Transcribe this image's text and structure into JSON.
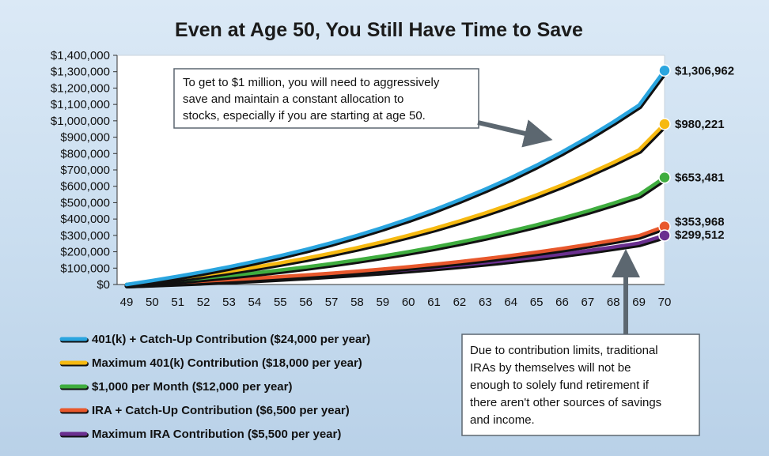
{
  "chart_data": {
    "type": "line",
    "title": "Even at Age 50, You Still Have Time to Save",
    "xlabel": "",
    "ylabel": "",
    "x": [
      49,
      50,
      51,
      52,
      53,
      54,
      55,
      56,
      57,
      58,
      59,
      60,
      61,
      62,
      63,
      64,
      65,
      66,
      67,
      68,
      69,
      70
    ],
    "x_tick_labels": [
      "49",
      "50",
      "51",
      "52",
      "53",
      "54",
      "55",
      "56",
      "57",
      "58",
      "59",
      "60",
      "61",
      "62",
      "63",
      "64",
      "65",
      "66",
      "67",
      "68",
      "69",
      "70"
    ],
    "ylim": [
      0,
      1400000
    ],
    "y_tick_labels": [
      "$0",
      "$100,000",
      "$200,000",
      "$300,000",
      "$400,000",
      "$500,000",
      "$600,000",
      "$700,000",
      "$800,000",
      "$900,000",
      "$1,000,000",
      "$1,100,000",
      "$1,200,000",
      "$1,300,000",
      "$1,400,000"
    ],
    "grid": false,
    "legend_position": "bottom-left",
    "series": [
      {
        "name": "401(k) + Catch-Up Contribution ($24,000 per year)",
        "color": "#2aa5df",
        "values": [
          0,
          24000,
          50000,
          78000,
          108000,
          141000,
          176000,
          214000,
          255000,
          300000,
          348000,
          400000,
          456000,
          517000,
          582000,
          652000,
          728000,
          810000,
          898000,
          993000,
          1095000,
          1306962
        ],
        "end_label": "$1,306,962"
      },
      {
        "name": "Maximum 401(k) Contribution ($18,000 per year)",
        "color": "#f6b911",
        "values": [
          0,
          18000,
          37500,
          58500,
          81000,
          105500,
          132000,
          160500,
          191500,
          225000,
          261000,
          300000,
          342000,
          388000,
          437000,
          490000,
          547000,
          608000,
          674000,
          745000,
          822000,
          980221
        ],
        "end_label": "$980,221"
      },
      {
        "name": "$1,000 per Month ($12,000 per year)",
        "color": "#3fad3f",
        "values": [
          0,
          12000,
          25000,
          39000,
          54000,
          70300,
          88000,
          107000,
          127600,
          150000,
          174000,
          200000,
          228000,
          258500,
          291300,
          326500,
          364300,
          405000,
          449000,
          496500,
          548000,
          653481
        ],
        "end_label": "$653,481"
      },
      {
        "name": "IRA + Catch-Up Contribution ($6,500 per year)",
        "color": "#e8582c",
        "values": [
          0,
          6500,
          13500,
          21100,
          29300,
          38100,
          47600,
          57900,
          69000,
          81000,
          94000,
          108000,
          123200,
          139600,
          157400,
          176600,
          197300,
          219700,
          243800,
          269800,
          297800,
          353968
        ],
        "end_label": "$353,968"
      },
      {
        "name": "Maximum IRA Contribution ($5,500 per year)",
        "color": "#6a2f8f",
        "values": [
          0,
          5500,
          11400,
          17800,
          24700,
          32200,
          40300,
          49000,
          58400,
          68600,
          79600,
          91400,
          104300,
          118100,
          133100,
          149300,
          166800,
          185800,
          206300,
          228300,
          252100,
          299512
        ],
        "end_label": "$299,512"
      }
    ],
    "annotations": [
      {
        "text_lines": [
          "To get to $1 million, you will need to aggressively",
          "save and maintain a constant allocation to",
          "stocks, especially if you are starting at age 50."
        ]
      },
      {
        "text_lines": [
          "Due to contribution limits, traditional",
          "IRAs by themselves will not be",
          "enough to solely fund retirement if",
          "there aren't other sources of savings",
          "and income."
        ]
      }
    ]
  }
}
